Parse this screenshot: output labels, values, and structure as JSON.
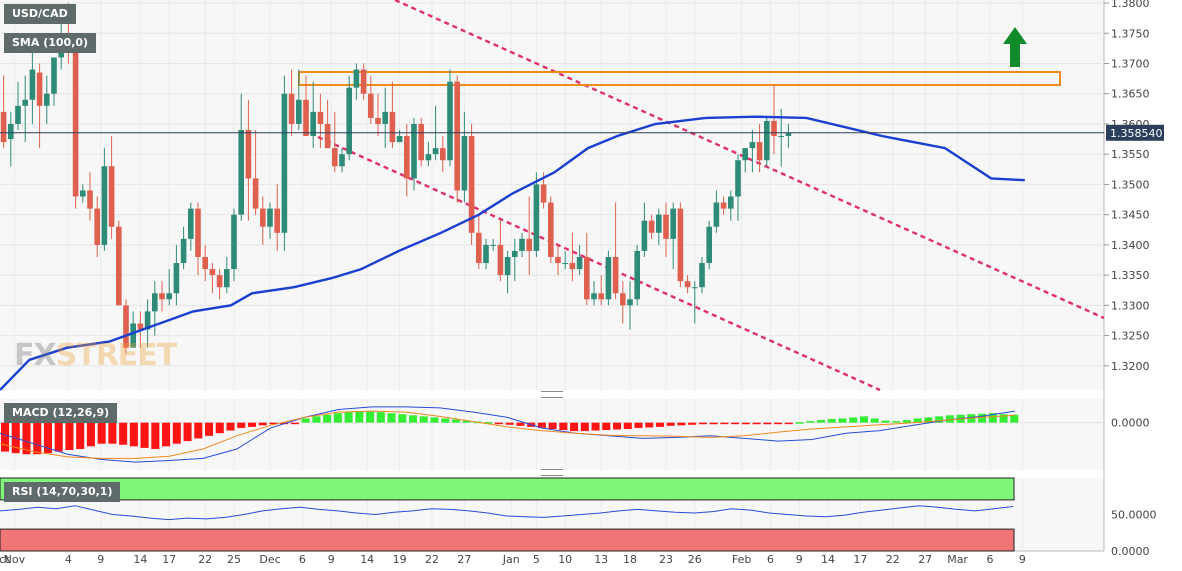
{
  "symbol": "USD/CAD",
  "indicators": {
    "sma_label": "SMA (100,0)",
    "macd_label": "MACD (12,26,9)",
    "rsi_label": "RSI (14,70,30,1)"
  },
  "watermark": {
    "part1": "FX",
    "part2": "STREET"
  },
  "chart_data": [
    {
      "type": "candlestick",
      "price_axis": {
        "ylim": [
          1.316,
          1.3805
        ],
        "ticks": [
          "1.3800",
          "1.3750",
          "1.3700",
          "1.3650",
          "1.3600",
          "1.3550",
          "1.3500",
          "1.3450",
          "1.3400",
          "1.3350",
          "1.3300",
          "1.3250",
          "1.3200"
        ]
      },
      "last_price": "1.358540",
      "x_axis": {
        "labels": [
          "Oct",
          "Nov",
          "4",
          "9",
          "14",
          "17",
          "22",
          "25",
          "Dec",
          "6",
          "9",
          "14",
          "19",
          "22",
          "27",
          "Jan",
          "5",
          "10",
          "13",
          "18",
          "23",
          "26",
          "Feb",
          "6",
          "9",
          "14",
          "17",
          "22",
          "27",
          "Mar",
          "6",
          "9"
        ],
        "label_index": [
          -0.5,
          1.5,
          9,
          13.5,
          19,
          23,
          28,
          32,
          37,
          41.5,
          45.5,
          50.5,
          55,
          59.5,
          64,
          70.5,
          74,
          78,
          83,
          87,
          92,
          96,
          102.5,
          106.5,
          110.5,
          114.5,
          119,
          123.5,
          128,
          132.5,
          137,
          141.5
        ]
      },
      "ohlc": [
        [
          1.362,
          1.368,
          1.356,
          1.357
        ],
        [
          1.3575,
          1.362,
          1.353,
          1.36
        ],
        [
          1.36,
          1.367,
          1.359,
          1.363
        ],
        [
          1.363,
          1.368,
          1.357,
          1.364
        ],
        [
          1.364,
          1.374,
          1.36,
          1.369
        ],
        [
          1.3685,
          1.37,
          1.356,
          1.363
        ],
        [
          1.363,
          1.368,
          1.36,
          1.365
        ],
        [
          1.365,
          1.371,
          1.363,
          1.371
        ],
        [
          1.371,
          1.378,
          1.369,
          1.374
        ],
        [
          1.374,
          1.38,
          1.37,
          1.372
        ],
        [
          1.372,
          1.373,
          1.346,
          1.348
        ],
        [
          1.348,
          1.35,
          1.347,
          1.349
        ],
        [
          1.349,
          1.352,
          1.344,
          1.346
        ],
        [
          1.346,
          1.348,
          1.338,
          1.34
        ],
        [
          1.34,
          1.356,
          1.339,
          1.353
        ],
        [
          1.353,
          1.358,
          1.341,
          1.343
        ],
        [
          1.343,
          1.344,
          1.33,
          1.33
        ],
        [
          1.33,
          1.331,
          1.322,
          1.323
        ],
        [
          1.323,
          1.329,
          1.323,
          1.327
        ],
        [
          1.327,
          1.329,
          1.323,
          1.326
        ],
        [
          1.326,
          1.331,
          1.323,
          1.329
        ],
        [
          1.329,
          1.334,
          1.325,
          1.332
        ],
        [
          1.332,
          1.334,
          1.329,
          1.331
        ],
        [
          1.331,
          1.336,
          1.33,
          1.332
        ],
        [
          1.332,
          1.34,
          1.33,
          1.337
        ],
        [
          1.337,
          1.343,
          1.336,
          1.341
        ],
        [
          1.341,
          1.347,
          1.339,
          1.346
        ],
        [
          1.346,
          1.347,
          1.335,
          1.338
        ],
        [
          1.338,
          1.34,
          1.334,
          1.336
        ],
        [
          1.336,
          1.337,
          1.332,
          1.335
        ],
        [
          1.335,
          1.336,
          1.331,
          1.333
        ],
        [
          1.333,
          1.338,
          1.332,
          1.336
        ],
        [
          1.336,
          1.346,
          1.334,
          1.345
        ],
        [
          1.345,
          1.365,
          1.344,
          1.359
        ],
        [
          1.359,
          1.364,
          1.344,
          1.351
        ],
        [
          1.351,
          1.359,
          1.345,
          1.346
        ],
        [
          1.346,
          1.348,
          1.34,
          1.343
        ],
        [
          1.343,
          1.347,
          1.341,
          1.346
        ],
        [
          1.346,
          1.35,
          1.339,
          1.342
        ],
        [
          1.342,
          1.368,
          1.339,
          1.365
        ],
        [
          1.365,
          1.369,
          1.358,
          1.36
        ],
        [
          1.36,
          1.369,
          1.359,
          1.364
        ],
        [
          1.364,
          1.368,
          1.358,
          1.358
        ],
        [
          1.358,
          1.367,
          1.356,
          1.362
        ],
        [
          1.362,
          1.365,
          1.356,
          1.36
        ],
        [
          1.36,
          1.364,
          1.356,
          1.356
        ],
        [
          1.356,
          1.362,
          1.352,
          1.353
        ],
        [
          1.353,
          1.356,
          1.352,
          1.355
        ],
        [
          1.355,
          1.368,
          1.354,
          1.366
        ],
        [
          1.366,
          1.37,
          1.364,
          1.369
        ],
        [
          1.369,
          1.37,
          1.364,
          1.365
        ],
        [
          1.365,
          1.368,
          1.36,
          1.361
        ],
        [
          1.361,
          1.365,
          1.358,
          1.36
        ],
        [
          1.36,
          1.366,
          1.356,
          1.362
        ],
        [
          1.362,
          1.367,
          1.356,
          1.357
        ],
        [
          1.357,
          1.359,
          1.357,
          1.358
        ],
        [
          1.358,
          1.36,
          1.348,
          1.351
        ],
        [
          1.351,
          1.361,
          1.349,
          1.36
        ],
        [
          1.36,
          1.361,
          1.353,
          1.354
        ],
        [
          1.354,
          1.357,
          1.353,
          1.355
        ],
        [
          1.355,
          1.363,
          1.354,
          1.356
        ],
        [
          1.356,
          1.358,
          1.352,
          1.354
        ],
        [
          1.354,
          1.369,
          1.353,
          1.367
        ],
        [
          1.367,
          1.368,
          1.347,
          1.349
        ],
        [
          1.349,
          1.362,
          1.347,
          1.358
        ],
        [
          1.358,
          1.36,
          1.34,
          1.342
        ],
        [
          1.342,
          1.345,
          1.336,
          1.337
        ],
        [
          1.337,
          1.341,
          1.336,
          1.34
        ],
        [
          1.34,
          1.341,
          1.339,
          1.34
        ],
        [
          1.34,
          1.344,
          1.334,
          1.335
        ],
        [
          1.335,
          1.339,
          1.332,
          1.338
        ],
        [
          1.338,
          1.341,
          1.334,
          1.339
        ],
        [
          1.339,
          1.342,
          1.338,
          1.341
        ],
        [
          1.341,
          1.348,
          1.335,
          1.339
        ],
        [
          1.339,
          1.352,
          1.338,
          1.35
        ],
        [
          1.35,
          1.352,
          1.346,
          1.347
        ],
        [
          1.347,
          1.348,
          1.337,
          1.338
        ],
        [
          1.338,
          1.34,
          1.335,
          1.337
        ],
        [
          1.337,
          1.339,
          1.336,
          1.337
        ],
        [
          1.337,
          1.342,
          1.334,
          1.336
        ],
        [
          1.336,
          1.34,
          1.335,
          1.338
        ],
        [
          1.338,
          1.342,
          1.33,
          1.331
        ],
        [
          1.331,
          1.334,
          1.33,
          1.332
        ],
        [
          1.332,
          1.335,
          1.33,
          1.331
        ],
        [
          1.331,
          1.339,
          1.33,
          1.338
        ],
        [
          1.338,
          1.347,
          1.331,
          1.332
        ],
        [
          1.332,
          1.334,
          1.327,
          1.33
        ],
        [
          1.33,
          1.334,
          1.326,
          1.331
        ],
        [
          1.331,
          1.34,
          1.33,
          1.339
        ],
        [
          1.339,
          1.347,
          1.338,
          1.344
        ],
        [
          1.344,
          1.345,
          1.341,
          1.342
        ],
        [
          1.342,
          1.346,
          1.34,
          1.345
        ],
        [
          1.345,
          1.347,
          1.338,
          1.341
        ],
        [
          1.341,
          1.347,
          1.336,
          1.346
        ],
        [
          1.346,
          1.347,
          1.333,
          1.334
        ],
        [
          1.334,
          1.335,
          1.332,
          1.333
        ],
        [
          1.333,
          1.334,
          1.327,
          1.333
        ],
        [
          1.333,
          1.338,
          1.332,
          1.337
        ],
        [
          1.337,
          1.344,
          1.336,
          1.343
        ],
        [
          1.343,
          1.349,
          1.342,
          1.347
        ],
        [
          1.347,
          1.348,
          1.345,
          1.346
        ],
        [
          1.346,
          1.349,
          1.344,
          1.348
        ],
        [
          1.348,
          1.355,
          1.344,
          1.354
        ],
        [
          1.354,
          1.356,
          1.352,
          1.356
        ],
        [
          1.356,
          1.359,
          1.352,
          1.357
        ],
        [
          1.357,
          1.36,
          1.352,
          1.354
        ],
        [
          1.354,
          1.361,
          1.353,
          1.3605
        ],
        [
          1.3605,
          1.3665,
          1.355,
          1.358
        ],
        [
          1.358,
          1.3625,
          1.353,
          1.358
        ],
        [
          1.358,
          1.36,
          1.356,
          1.3585
        ]
      ],
      "sma100": [
        1.316,
        1.321,
        1.323,
        1.324,
        1.326,
        1.3275,
        1.329,
        1.33,
        1.332,
        1.333,
        1.3345,
        1.336,
        1.339,
        1.342,
        1.345,
        1.3485,
        1.352,
        1.356,
        1.358,
        1.36,
        1.361,
        1.3612,
        1.361,
        1.358,
        1.356,
        1.351,
        1.3507
      ],
      "sma100_at": [
        0,
        7,
        16,
        26,
        34,
        40,
        46,
        55,
        60,
        70,
        79,
        86,
        95,
        105,
        114,
        122,
        132,
        140,
        147,
        156,
        168,
        180,
        192,
        210,
        225,
        236,
        244
      ],
      "annotations": [
        "resistance-box",
        "falling-channel",
        "trendline-break",
        "up-arrow"
      ]
    },
    {
      "type": "macd",
      "ticks": [
        "0.0000"
      ],
      "ylim": [
        -0.009,
        0.0045
      ],
      "histogram": [
        -0.0055,
        -0.0058,
        -0.006,
        -0.006,
        -0.0058,
        -0.0055,
        -0.0052,
        -0.005,
        -0.0045,
        -0.004,
        -0.004,
        -0.0042,
        -0.0045,
        -0.0048,
        -0.005,
        -0.0045,
        -0.004,
        -0.0035,
        -0.003,
        -0.0025,
        -0.002,
        -0.0015,
        -0.001,
        -0.0008,
        -0.0005,
        -0.0003,
        -0.0002,
        -0.0001,
        0.0008,
        0.0012,
        0.0015,
        0.0018,
        0.002,
        0.0022,
        0.0022,
        0.002,
        0.0018,
        0.0016,
        0.0014,
        0.0012,
        0.001,
        0.0008,
        0.0006,
        0.0004,
        0.0002,
        0.0001,
        -0.0002,
        -0.0004,
        -0.0006,
        -0.0008,
        -0.001,
        -0.0012,
        -0.0014,
        -0.0016,
        -0.0016,
        -0.0015,
        -0.0014,
        -0.0013,
        -0.0012,
        -0.001,
        -0.0009,
        -0.0008,
        -0.0006,
        -0.0005,
        -0.0004,
        -0.0003,
        -0.0003,
        -0.0002,
        -0.0002,
        -0.0003,
        -0.0003,
        -0.0003,
        -0.0002,
        -0.0002,
        0.0001,
        0.0003,
        0.0005,
        0.0007,
        0.0008,
        0.001,
        0.0012,
        0.0008,
        0.0004,
        0.0003,
        0.0005,
        0.0008,
        0.001,
        0.0012,
        0.0014,
        0.0015,
        0.0016,
        0.0017,
        0.0018,
        0.0016,
        0.0015
      ],
      "histogram_start": 0,
      "macd": [
        -0.002,
        -0.004,
        -0.006,
        -0.007,
        -0.0075,
        -0.0072,
        -0.0068,
        -0.005,
        -0.001,
        0.001,
        0.0025,
        0.003,
        0.003,
        0.0028,
        0.002,
        0.001,
        -0.001,
        -0.002,
        -0.0025,
        -0.003,
        -0.0028,
        -0.0025,
        -0.003,
        -0.0035,
        -0.0032,
        -0.002,
        -0.0015,
        -0.0005,
        0.0005,
        0.0012,
        0.0022
      ],
      "signal": [
        -0.004,
        -0.0055,
        -0.0065,
        -0.0068,
        -0.0068,
        -0.0064,
        -0.005,
        -0.0025,
        -0.0005,
        0.001,
        0.002,
        0.0022,
        0.002,
        0.0012,
        0.0002,
        -0.0008,
        -0.0015,
        -0.002,
        -0.0024,
        -0.0025,
        -0.0026,
        -0.0028,
        -0.0025,
        -0.0018,
        -0.0012,
        -0.0008,
        -0.0004,
        0.0,
        0.0005,
        0.001,
        0.0014
      ]
    },
    {
      "type": "rsi",
      "ticks": [
        "50.0000",
        "0.0000"
      ],
      "ylim": [
        0,
        100
      ],
      "overbought": 70,
      "oversold": 30,
      "values": [
        55,
        57,
        60,
        58,
        62,
        56,
        50,
        48,
        45,
        43,
        45,
        44,
        46,
        50,
        55,
        58,
        60,
        57,
        55,
        52,
        50,
        53,
        55,
        58,
        57,
        55,
        52,
        48,
        47,
        46,
        48,
        50,
        52,
        55,
        57,
        55,
        53,
        52,
        54,
        58,
        56,
        52,
        50,
        48,
        47,
        49,
        53,
        56,
        59,
        62,
        60,
        57,
        55,
        58,
        61
      ]
    }
  ]
}
